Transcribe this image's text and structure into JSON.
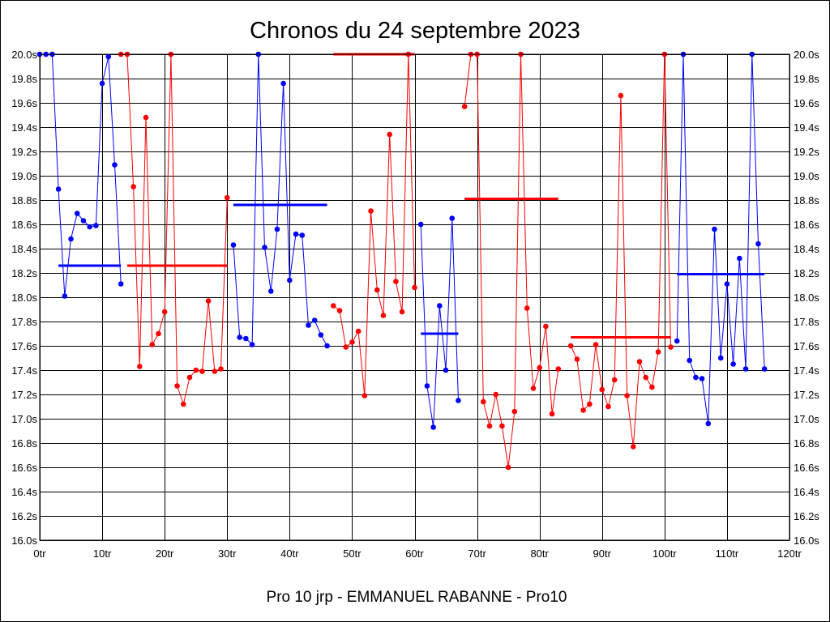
{
  "chart_data": {
    "type": "line",
    "title": "Chronos du 24 septembre 2023",
    "xlabel": "Pro 10 jrp - EMMANUEL RABANNE - Pro10",
    "ylabel": "",
    "xlim": [
      0,
      120
    ],
    "ylim": [
      16.0,
      20.0
    ],
    "x_ticks": [
      0,
      10,
      20,
      30,
      40,
      50,
      60,
      70,
      80,
      90,
      100,
      110,
      120
    ],
    "x_tick_labels": [
      "0tr",
      "10tr",
      "20tr",
      "30tr",
      "40tr",
      "50tr",
      "60tr",
      "70tr",
      "80tr",
      "90tr",
      "100tr",
      "110tr",
      "120tr"
    ],
    "y_ticks": [
      16.0,
      16.2,
      16.4,
      16.6,
      16.8,
      17.0,
      17.2,
      17.4,
      17.6,
      17.8,
      18.0,
      18.2,
      18.4,
      18.6,
      18.8,
      19.0,
      19.2,
      19.4,
      19.6,
      19.8,
      20.0
    ],
    "y_tick_labels": [
      "16.0s",
      "16.2s",
      "16.4s",
      "16.6s",
      "16.8s",
      "17.0s",
      "17.2s",
      "17.4s",
      "17.6s",
      "17.8s",
      "18.0s",
      "18.2s",
      "18.4s",
      "18.6s",
      "18.8s",
      "19.0s",
      "19.2s",
      "19.4s",
      "19.6s",
      "19.8s",
      "20.0s"
    ],
    "grid": true,
    "right_axis": true,
    "colors": {
      "blue": "#0000ff",
      "red": "#ff0000"
    },
    "stints": [
      {
        "color": "blue",
        "x": [
          0,
          1,
          2,
          3,
          4,
          5,
          6,
          7,
          8,
          9,
          10,
          11,
          12,
          13
        ],
        "y": [
          20.0,
          20.0,
          20.0,
          18.89,
          18.01,
          18.48,
          18.69,
          18.63,
          18.58,
          18.59,
          19.76,
          19.98,
          19.09,
          18.11
        ],
        "avg": {
          "x_start": 3,
          "x_end": 13,
          "value": 18.26
        }
      },
      {
        "color": "red",
        "x": [
          13,
          14,
          15,
          16,
          17,
          18,
          19,
          20,
          21,
          22,
          23,
          24,
          25,
          26,
          27,
          28,
          29,
          30
        ],
        "y": [
          20.0,
          20.0,
          18.91,
          17.43,
          19.48,
          17.61,
          17.7,
          17.88,
          20.0,
          17.27,
          17.12,
          17.34,
          17.4,
          17.39,
          17.97,
          17.39,
          17.41,
          18.82
        ],
        "avg": {
          "x_start": 14,
          "x_end": 30,
          "value": 18.26
        }
      },
      {
        "color": "blue",
        "x": [
          31,
          32,
          33,
          34,
          35,
          36,
          37,
          38,
          39,
          40,
          41,
          42,
          43,
          44,
          45,
          46
        ],
        "y": [
          18.43,
          17.67,
          17.66,
          17.61,
          20.0,
          18.41,
          18.05,
          18.56,
          19.76,
          18.14,
          18.52,
          18.51,
          17.77,
          17.81,
          17.69,
          17.6
        ],
        "avg": {
          "x_start": 31,
          "x_end": 46,
          "value": 18.76
        }
      },
      {
        "color": "red",
        "x": [
          47,
          48,
          49,
          50,
          51,
          52,
          53,
          54,
          55,
          56,
          57,
          58,
          59,
          60
        ],
        "y": [
          17.93,
          17.89,
          17.59,
          17.63,
          17.72,
          17.19,
          18.71,
          18.06,
          17.85,
          19.34,
          18.13,
          17.88,
          20.0,
          18.08
        ],
        "avg": {
          "x_start": 47,
          "x_end": 60,
          "value": 20.0
        }
      },
      {
        "color": "blue",
        "x": [
          61,
          62,
          63,
          64,
          65,
          66,
          67
        ],
        "y": [
          18.6,
          17.27,
          16.93,
          17.93,
          17.4,
          18.65,
          17.15
        ],
        "avg": {
          "x_start": 61,
          "x_end": 67,
          "value": 17.7
        }
      },
      {
        "color": "red",
        "x": [
          68,
          69,
          70,
          71,
          72,
          73,
          74,
          75,
          76,
          77,
          78,
          79,
          80,
          81,
          82,
          83
        ],
        "y": [
          19.57,
          20.0,
          20.0,
          17.14,
          16.94,
          17.2,
          16.94,
          16.6,
          17.06,
          20.0,
          17.91,
          17.25,
          17.42,
          17.76,
          17.04,
          17.41
        ],
        "avg": {
          "x_start": 68,
          "x_end": 83,
          "value": 18.81
        }
      },
      {
        "color": "red",
        "x": [
          85,
          86,
          87,
          88,
          89,
          90,
          91,
          92,
          93,
          94,
          95,
          96,
          97,
          98,
          99,
          100,
          101
        ],
        "y": [
          17.6,
          17.49,
          17.07,
          17.12,
          17.61,
          17.24,
          17.1,
          17.32,
          19.66,
          17.19,
          16.77,
          17.47,
          17.34,
          17.26,
          17.55,
          20.0,
          17.59
        ],
        "avg": {
          "x_start": 85,
          "x_end": 101,
          "value": 17.67
        }
      },
      {
        "color": "blue",
        "x": [
          102,
          103,
          104,
          105,
          106,
          107,
          108,
          109,
          110,
          111,
          112,
          113,
          114,
          115,
          116
        ],
        "y": [
          17.64,
          20.0,
          17.48,
          17.34,
          17.33,
          16.96,
          18.56,
          17.5,
          18.11,
          17.45,
          18.32,
          17.41,
          20.0,
          18.44,
          17.41
        ],
        "avg": {
          "x_start": 102,
          "x_end": 116,
          "value": 18.19
        }
      }
    ]
  }
}
